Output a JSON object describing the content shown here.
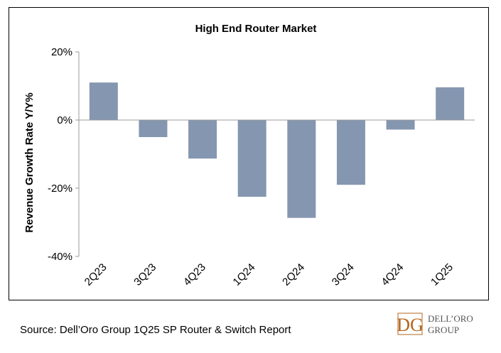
{
  "chart_data": {
    "type": "bar",
    "title": "High End Router Market",
    "ylabel": "Revenue Growth Rate Y/Y%",
    "xlabel": "",
    "categories": [
      "2Q23",
      "3Q23",
      "4Q23",
      "1Q24",
      "2Q24",
      "3Q24",
      "4Q24",
      "1Q25"
    ],
    "values": [
      11,
      -5,
      -11.3,
      -22.5,
      -28.7,
      -19,
      -2.8,
      9.6
    ],
    "ylim": [
      -40,
      20
    ],
    "yticks": [
      20,
      0,
      -20,
      -40
    ],
    "ytick_labels": [
      "20%",
      "0%",
      "-20%",
      "-40%"
    ],
    "grid": false,
    "legend": "none",
    "bar_color": "#8596b0"
  },
  "source_text": "Source: Dell’Oro Group 1Q25 SP Router & Switch Report",
  "logo": {
    "line1": "DELL’ORO",
    "line2": "GROUP",
    "monogram": "DG",
    "color": "#b5651d"
  }
}
